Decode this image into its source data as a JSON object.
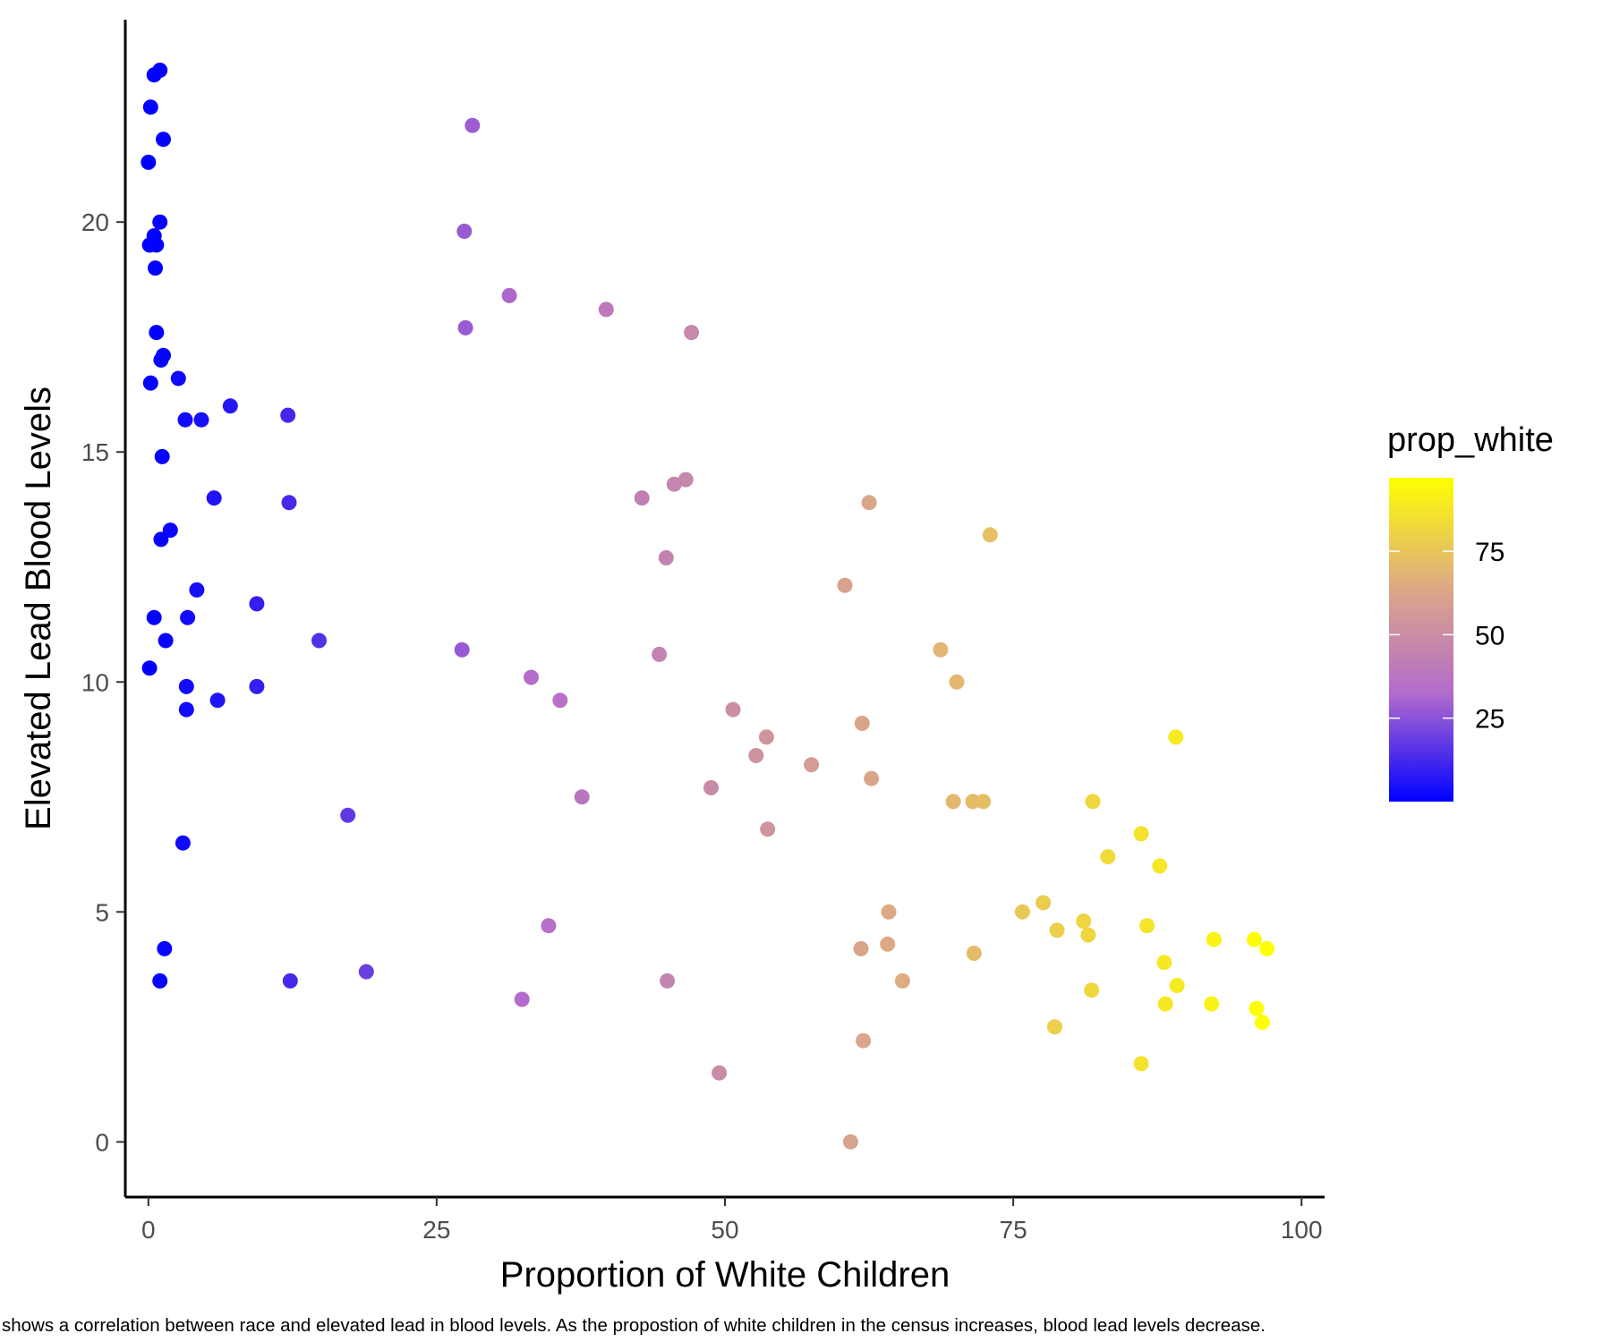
{
  "chart_data": {
    "type": "scatter",
    "xlabel": "Proportion of White Children",
    "ylabel": "Elevated Lead Blood Levels",
    "xlim": [
      -2,
      102
    ],
    "ylim": [
      -1.2,
      24.4
    ],
    "x_ticks": [
      0,
      25,
      50,
      75,
      100
    ],
    "y_ticks": [
      0,
      5,
      10,
      15,
      20
    ],
    "x_tick_labels": [
      "0",
      "25",
      "50",
      "75",
      "100"
    ],
    "y_tick_labels": [
      "0",
      "5",
      "10",
      "15",
      "20"
    ],
    "grid": false,
    "legend": {
      "title": "prop_white",
      "placement": "right",
      "type": "colorbar",
      "range": [
        0,
        97
      ],
      "ticks": [
        25,
        50,
        75
      ],
      "tick_labels": [
        "25",
        "50",
        "75"
      ],
      "colors": [
        "#0000FF",
        "#B36BCC",
        "#DDAA84",
        "#FFFF00"
      ]
    },
    "caption": "shows a correlation between race and elevated lead in blood levels. As the propostion of white children in the census increases, blood lead levels decrease.",
    "points": [
      [
        1.0,
        23.3
      ],
      [
        0.5,
        23.2
      ],
      [
        0.2,
        22.5
      ],
      [
        1.3,
        21.8
      ],
      [
        0.0,
        21.3
      ],
      [
        1.0,
        20.0
      ],
      [
        0.5,
        19.7
      ],
      [
        0.1,
        19.5
      ],
      [
        0.7,
        19.5
      ],
      [
        0.6,
        19.0
      ],
      [
        0.7,
        17.6
      ],
      [
        1.3,
        17.1
      ],
      [
        1.1,
        17.0
      ],
      [
        2.6,
        16.6
      ],
      [
        0.2,
        16.5
      ],
      [
        7.1,
        16.0
      ],
      [
        4.6,
        15.7
      ],
      [
        3.2,
        15.7
      ],
      [
        12.1,
        15.8
      ],
      [
        1.2,
        14.9
      ],
      [
        5.7,
        14.0
      ],
      [
        12.2,
        13.9
      ],
      [
        1.9,
        13.3
      ],
      [
        1.1,
        13.1
      ],
      [
        4.2,
        12.0
      ],
      [
        9.4,
        11.7
      ],
      [
        3.4,
        11.4
      ],
      [
        0.5,
        11.4
      ],
      [
        14.8,
        10.9
      ],
      [
        1.5,
        10.9
      ],
      [
        0.1,
        10.3
      ],
      [
        9.4,
        9.9
      ],
      [
        3.3,
        9.9
      ],
      [
        6.0,
        9.6
      ],
      [
        3.3,
        9.4
      ],
      [
        17.3,
        7.1
      ],
      [
        3.0,
        6.5
      ],
      [
        1.4,
        4.2
      ],
      [
        1.0,
        3.5
      ],
      [
        12.3,
        3.5
      ],
      [
        18.9,
        3.7
      ],
      [
        28.1,
        22.1
      ],
      [
        27.4,
        19.8
      ],
      [
        31.3,
        18.4
      ],
      [
        39.7,
        18.1
      ],
      [
        27.5,
        17.7
      ],
      [
        47.1,
        17.6
      ],
      [
        46.6,
        14.4
      ],
      [
        45.6,
        14.3
      ],
      [
        42.8,
        14.0
      ],
      [
        44.9,
        12.7
      ],
      [
        27.2,
        10.7
      ],
      [
        44.3,
        10.6
      ],
      [
        33.2,
        10.1
      ],
      [
        35.7,
        9.6
      ],
      [
        37.6,
        7.5
      ],
      [
        34.7,
        4.7
      ],
      [
        32.4,
        3.1
      ],
      [
        45.0,
        3.5
      ],
      [
        62.5,
        13.9
      ],
      [
        73.0,
        13.2
      ],
      [
        60.4,
        12.1
      ],
      [
        68.7,
        10.7
      ],
      [
        70.1,
        10.0
      ],
      [
        50.7,
        9.4
      ],
      [
        61.9,
        9.1
      ],
      [
        53.6,
        8.8
      ],
      [
        52.7,
        8.4
      ],
      [
        57.5,
        8.2
      ],
      [
        62.7,
        7.9
      ],
      [
        48.8,
        7.7
      ],
      [
        69.8,
        7.4
      ],
      [
        71.5,
        7.4
      ],
      [
        72.4,
        7.4
      ],
      [
        53.7,
        6.8
      ],
      [
        64.2,
        5.0
      ],
      [
        61.8,
        4.2
      ],
      [
        64.1,
        4.3
      ],
      [
        65.4,
        3.5
      ],
      [
        71.6,
        4.1
      ],
      [
        49.5,
        1.5
      ],
      [
        62.0,
        2.2
      ],
      [
        60.9,
        0.0
      ],
      [
        89.1,
        8.8
      ],
      [
        81.9,
        7.4
      ],
      [
        86.1,
        6.7
      ],
      [
        83.2,
        6.2
      ],
      [
        87.7,
        6.0
      ],
      [
        77.6,
        5.2
      ],
      [
        75.8,
        5.0
      ],
      [
        81.1,
        4.8
      ],
      [
        86.6,
        4.7
      ],
      [
        78.8,
        4.6
      ],
      [
        81.5,
        4.5
      ],
      [
        92.4,
        4.4
      ],
      [
        95.9,
        4.4
      ],
      [
        97.0,
        4.2
      ],
      [
        88.1,
        3.9
      ],
      [
        89.2,
        3.4
      ],
      [
        81.8,
        3.3
      ],
      [
        88.2,
        3.0
      ],
      [
        92.2,
        3.0
      ],
      [
        96.1,
        2.9
      ],
      [
        96.6,
        2.6
      ],
      [
        78.6,
        2.5
      ],
      [
        86.1,
        1.7
      ]
    ]
  }
}
